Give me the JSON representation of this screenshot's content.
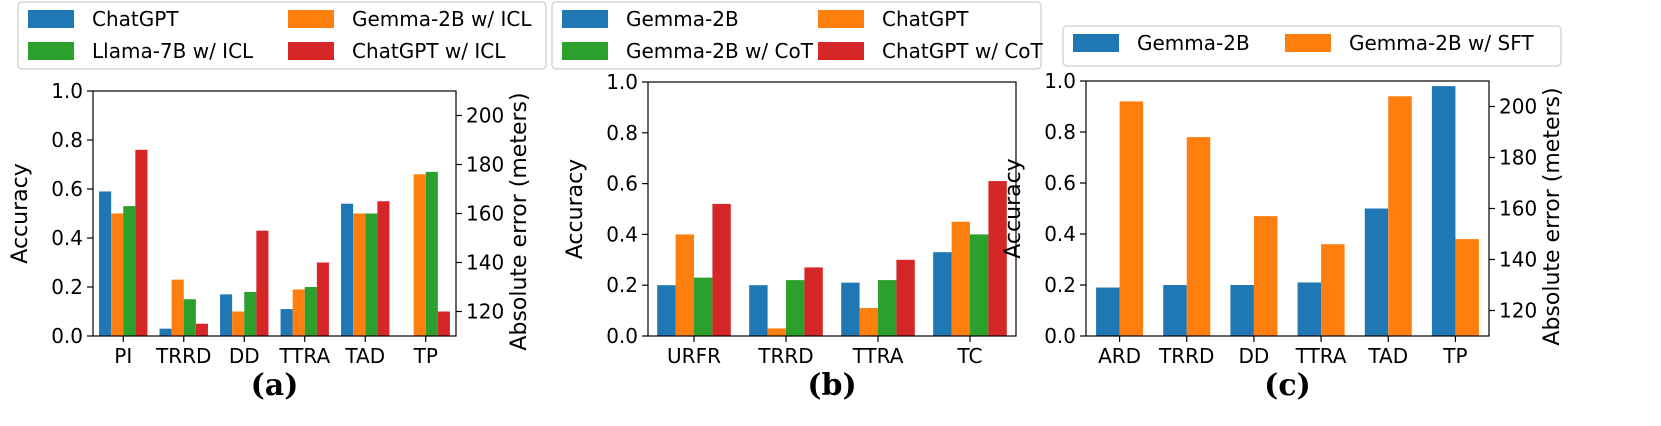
{
  "chart_data": [
    {
      "type": "bar",
      "panel_label": "(a)",
      "categories": [
        "PI",
        "TRRD",
        "DD",
        "TTRA",
        "TAD",
        "TP"
      ],
      "ylabel": "Accuracy",
      "ylim": [
        0,
        1.0
      ],
      "yticks": [
        "0.0",
        "0.2",
        "0.4",
        "0.6",
        "0.8",
        "1.0"
      ],
      "secondary_ylabel": "Absolute error (meters)",
      "secondary_yticks": [
        "120",
        "140",
        "160",
        "180",
        "200"
      ],
      "legend_position": "above",
      "series": [
        {
          "name": "ChatGPT",
          "color": "#1f77b4",
          "values": [
            0.59,
            0.03,
            0.17,
            0.11,
            0.54,
            null
          ]
        },
        {
          "name": "Gemma-2B w/ ICL",
          "color": "#ff7f0e",
          "values": [
            0.5,
            0.23,
            0.1,
            0.19,
            0.5,
            0.66
          ]
        },
        {
          "name": "Llama-7B w/ ICL",
          "color": "#2ca02c",
          "values": [
            0.53,
            0.15,
            0.18,
            0.2,
            0.5,
            0.67
          ]
        },
        {
          "name": "ChatGPT w/ ICL",
          "color": "#d62728",
          "values": [
            0.76,
            0.05,
            0.43,
            0.3,
            0.55,
            0.1
          ]
        }
      ]
    },
    {
      "type": "bar",
      "panel_label": "(b)",
      "categories": [
        "URFR",
        "TRRD",
        "TTRA",
        "TC"
      ],
      "ylabel": "Accuracy",
      "ylim": [
        0,
        1.0
      ],
      "yticks": [
        "0.0",
        "0.2",
        "0.4",
        "0.6",
        "0.8",
        "1.0"
      ],
      "legend_position": "above",
      "series": [
        {
          "name": "Gemma-2B",
          "color": "#1f77b4",
          "values": [
            0.2,
            0.2,
            0.21,
            0.33
          ]
        },
        {
          "name": "ChatGPT",
          "color": "#ff7f0e",
          "values": [
            0.4,
            0.03,
            0.11,
            0.45
          ]
        },
        {
          "name": "Gemma-2B w/ CoT",
          "color": "#2ca02c",
          "values": [
            0.23,
            0.22,
            0.22,
            0.4
          ]
        },
        {
          "name": "ChatGPT w/ CoT",
          "color": "#d62728",
          "values": [
            0.52,
            0.27,
            0.3,
            0.61
          ]
        }
      ]
    },
    {
      "type": "bar",
      "panel_label": "(c)",
      "categories": [
        "ARD",
        "TRRD",
        "DD",
        "TTRA",
        "TAD",
        "TP"
      ],
      "ylabel": "Accuracy",
      "ylim": [
        0,
        1.0
      ],
      "yticks": [
        "0.0",
        "0.2",
        "0.4",
        "0.6",
        "0.8",
        "1.0"
      ],
      "secondary_ylabel": "Absolute error (meters)",
      "secondary_yticks": [
        "120",
        "140",
        "160",
        "180",
        "200"
      ],
      "legend_position": "above",
      "series": [
        {
          "name": "Gemma-2B",
          "color": "#1f77b4",
          "values": [
            0.19,
            0.2,
            0.2,
            0.21,
            0.5,
            0.98
          ]
        },
        {
          "name": "Gemma-2B w/ SFT",
          "color": "#ff7f0e",
          "values": [
            0.92,
            0.78,
            0.47,
            0.36,
            0.94,
            0.38
          ]
        }
      ]
    }
  ]
}
